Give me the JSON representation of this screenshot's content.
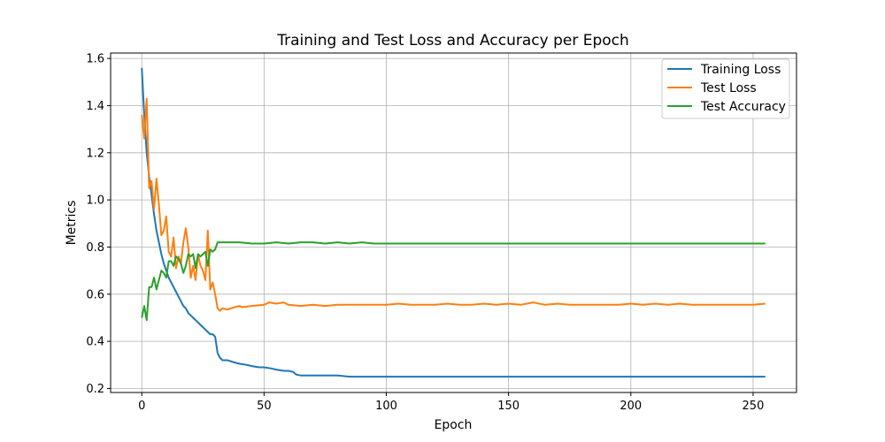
{
  "chart_data": {
    "type": "line",
    "title": "Training and Test Loss and Accuracy per Epoch",
    "xlabel": "Epoch",
    "ylabel": "Metrics",
    "xlim": [
      -12.75,
      267.75
    ],
    "ylim": [
      0.183,
      1.623
    ],
    "xticks": [
      0,
      50,
      100,
      150,
      200,
      250
    ],
    "yticks": [
      0.2,
      0.4,
      0.6,
      0.8,
      1.0,
      1.2,
      1.4,
      1.6
    ],
    "grid": true,
    "legend_position": "top-right",
    "colors": {
      "training_loss": "#1f77b4",
      "test_loss": "#ff7f0e",
      "test_accuracy": "#2ca02c"
    },
    "series": [
      {
        "name": "Training Loss",
        "color": "#1f77b4",
        "points": [
          [
            0,
            1.56
          ],
          [
            1,
            1.36
          ],
          [
            2,
            1.2
          ],
          [
            3,
            1.1
          ],
          [
            4,
            1.02
          ],
          [
            5,
            0.94
          ],
          [
            6,
            0.87
          ],
          [
            7,
            0.82
          ],
          [
            8,
            0.77
          ],
          [
            9,
            0.73
          ],
          [
            10,
            0.7
          ],
          [
            11,
            0.67
          ],
          [
            12,
            0.65
          ],
          [
            13,
            0.63
          ],
          [
            14,
            0.61
          ],
          [
            15,
            0.59
          ],
          [
            16,
            0.57
          ],
          [
            17,
            0.55
          ],
          [
            18,
            0.54
          ],
          [
            19,
            0.52
          ],
          [
            20,
            0.51
          ],
          [
            21,
            0.5
          ],
          [
            22,
            0.49
          ],
          [
            23,
            0.48
          ],
          [
            24,
            0.47
          ],
          [
            25,
            0.46
          ],
          [
            26,
            0.45
          ],
          [
            27,
            0.44
          ],
          [
            28,
            0.43
          ],
          [
            29,
            0.43
          ],
          [
            30,
            0.42
          ],
          [
            31,
            0.35
          ],
          [
            32,
            0.33
          ],
          [
            33,
            0.32
          ],
          [
            35,
            0.32
          ],
          [
            38,
            0.31
          ],
          [
            40,
            0.305
          ],
          [
            43,
            0.3
          ],
          [
            45,
            0.295
          ],
          [
            48,
            0.29
          ],
          [
            50,
            0.29
          ],
          [
            53,
            0.285
          ],
          [
            55,
            0.28
          ],
          [
            58,
            0.275
          ],
          [
            60,
            0.275
          ],
          [
            62,
            0.27
          ],
          [
            63,
            0.26
          ],
          [
            65,
            0.255
          ],
          [
            70,
            0.255
          ],
          [
            75,
            0.255
          ],
          [
            80,
            0.255
          ],
          [
            85,
            0.25
          ],
          [
            90,
            0.25
          ],
          [
            95,
            0.25
          ],
          [
            100,
            0.25
          ],
          [
            110,
            0.25
          ],
          [
            120,
            0.25
          ],
          [
            130,
            0.25
          ],
          [
            140,
            0.25
          ],
          [
            150,
            0.25
          ],
          [
            160,
            0.25
          ],
          [
            170,
            0.25
          ],
          [
            180,
            0.25
          ],
          [
            190,
            0.25
          ],
          [
            200,
            0.25
          ],
          [
            210,
            0.25
          ],
          [
            220,
            0.25
          ],
          [
            230,
            0.25
          ],
          [
            240,
            0.25
          ],
          [
            250,
            0.25
          ],
          [
            255,
            0.25
          ]
        ]
      },
      {
        "name": "Test Loss",
        "color": "#ff7f0e",
        "points": [
          [
            0,
            1.36
          ],
          [
            1,
            1.26
          ],
          [
            2,
            1.43
          ],
          [
            3,
            1.05
          ],
          [
            4,
            1.08
          ],
          [
            5,
            0.96
          ],
          [
            6,
            1.09
          ],
          [
            7,
            0.98
          ],
          [
            8,
            0.85
          ],
          [
            9,
            0.87
          ],
          [
            10,
            0.93
          ],
          [
            11,
            0.78
          ],
          [
            12,
            0.76
          ],
          [
            13,
            0.84
          ],
          [
            14,
            0.71
          ],
          [
            15,
            0.76
          ],
          [
            16,
            0.73
          ],
          [
            17,
            0.82
          ],
          [
            18,
            0.88
          ],
          [
            19,
            0.8
          ],
          [
            20,
            0.67
          ],
          [
            21,
            0.72
          ],
          [
            22,
            0.66
          ],
          [
            23,
            0.77
          ],
          [
            24,
            0.72
          ],
          [
            25,
            0.7
          ],
          [
            26,
            0.66
          ],
          [
            27,
            0.87
          ],
          [
            28,
            0.62
          ],
          [
            29,
            0.65
          ],
          [
            30,
            0.6
          ],
          [
            31,
            0.54
          ],
          [
            32,
            0.53
          ],
          [
            33,
            0.54
          ],
          [
            35,
            0.535
          ],
          [
            38,
            0.545
          ],
          [
            40,
            0.55
          ],
          [
            41,
            0.545
          ],
          [
            45,
            0.55
          ],
          [
            50,
            0.555
          ],
          [
            52,
            0.565
          ],
          [
            55,
            0.56
          ],
          [
            58,
            0.565
          ],
          [
            60,
            0.555
          ],
          [
            65,
            0.55
          ],
          [
            70,
            0.555
          ],
          [
            75,
            0.55
          ],
          [
            80,
            0.555
          ],
          [
            85,
            0.555
          ],
          [
            90,
            0.555
          ],
          [
            95,
            0.555
          ],
          [
            100,
            0.555
          ],
          [
            105,
            0.56
          ],
          [
            110,
            0.555
          ],
          [
            115,
            0.555
          ],
          [
            120,
            0.555
          ],
          [
            125,
            0.56
          ],
          [
            130,
            0.555
          ],
          [
            135,
            0.555
          ],
          [
            140,
            0.56
          ],
          [
            145,
            0.555
          ],
          [
            150,
            0.56
          ],
          [
            155,
            0.555
          ],
          [
            160,
            0.565
          ],
          [
            165,
            0.555
          ],
          [
            170,
            0.56
          ],
          [
            175,
            0.555
          ],
          [
            180,
            0.555
          ],
          [
            185,
            0.555
          ],
          [
            190,
            0.555
          ],
          [
            195,
            0.555
          ],
          [
            200,
            0.56
          ],
          [
            205,
            0.555
          ],
          [
            210,
            0.56
          ],
          [
            215,
            0.555
          ],
          [
            220,
            0.56
          ],
          [
            225,
            0.555
          ],
          [
            230,
            0.555
          ],
          [
            235,
            0.555
          ],
          [
            240,
            0.555
          ],
          [
            245,
            0.555
          ],
          [
            250,
            0.555
          ],
          [
            255,
            0.56
          ]
        ]
      },
      {
        "name": "Test Accuracy",
        "color": "#2ca02c",
        "points": [
          [
            0,
            0.5
          ],
          [
            1,
            0.55
          ],
          [
            2,
            0.49
          ],
          [
            3,
            0.63
          ],
          [
            4,
            0.63
          ],
          [
            5,
            0.67
          ],
          [
            6,
            0.62
          ],
          [
            7,
            0.66
          ],
          [
            8,
            0.7
          ],
          [
            9,
            0.69
          ],
          [
            10,
            0.67
          ],
          [
            11,
            0.74
          ],
          [
            12,
            0.74
          ],
          [
            13,
            0.72
          ],
          [
            14,
            0.76
          ],
          [
            15,
            0.75
          ],
          [
            16,
            0.73
          ],
          [
            17,
            0.69
          ],
          [
            18,
            0.72
          ],
          [
            19,
            0.77
          ],
          [
            20,
            0.76
          ],
          [
            21,
            0.77
          ],
          [
            22,
            0.71
          ],
          [
            23,
            0.77
          ],
          [
            24,
            0.76
          ],
          [
            25,
            0.77
          ],
          [
            26,
            0.78
          ],
          [
            27,
            0.72
          ],
          [
            28,
            0.79
          ],
          [
            29,
            0.78
          ],
          [
            30,
            0.79
          ],
          [
            31,
            0.82
          ],
          [
            32,
            0.82
          ],
          [
            35,
            0.82
          ],
          [
            40,
            0.82
          ],
          [
            45,
            0.815
          ],
          [
            50,
            0.815
          ],
          [
            55,
            0.82
          ],
          [
            60,
            0.815
          ],
          [
            65,
            0.82
          ],
          [
            70,
            0.82
          ],
          [
            75,
            0.815
          ],
          [
            80,
            0.82
          ],
          [
            85,
            0.815
          ],
          [
            90,
            0.82
          ],
          [
            95,
            0.815
          ],
          [
            100,
            0.815
          ],
          [
            110,
            0.815
          ],
          [
            120,
            0.815
          ],
          [
            130,
            0.815
          ],
          [
            140,
            0.815
          ],
          [
            150,
            0.815
          ],
          [
            160,
            0.815
          ],
          [
            170,
            0.815
          ],
          [
            180,
            0.815
          ],
          [
            190,
            0.815
          ],
          [
            200,
            0.815
          ],
          [
            210,
            0.815
          ],
          [
            220,
            0.815
          ],
          [
            230,
            0.815
          ],
          [
            240,
            0.815
          ],
          [
            250,
            0.815
          ],
          [
            255,
            0.815
          ]
        ]
      }
    ]
  }
}
